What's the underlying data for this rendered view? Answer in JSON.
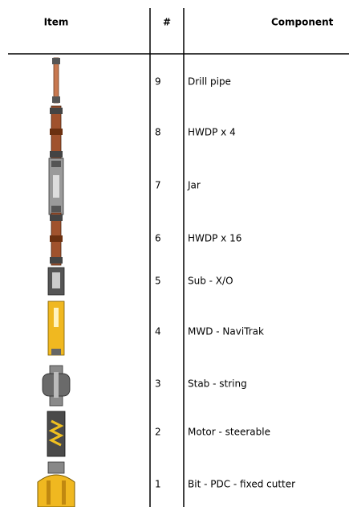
{
  "header": {
    "item": "Item",
    "number": "#",
    "component": "Component"
  },
  "rows": [
    {
      "number": 9,
      "component": "Drill pipe"
    },
    {
      "number": 8,
      "component": "HWDP x 4"
    },
    {
      "number": 7,
      "component": "Jar"
    },
    {
      "number": 6,
      "component": "HWDP x 16"
    },
    {
      "number": 5,
      "component": "Sub - X/O"
    },
    {
      "number": 4,
      "component": "MWD - NaviTrak"
    },
    {
      "number": 3,
      "component": "Stab - string"
    },
    {
      "number": 2,
      "component": "Motor - steerable"
    },
    {
      "number": 1,
      "component": "Bit - PDC - fixed cutter"
    }
  ]
}
